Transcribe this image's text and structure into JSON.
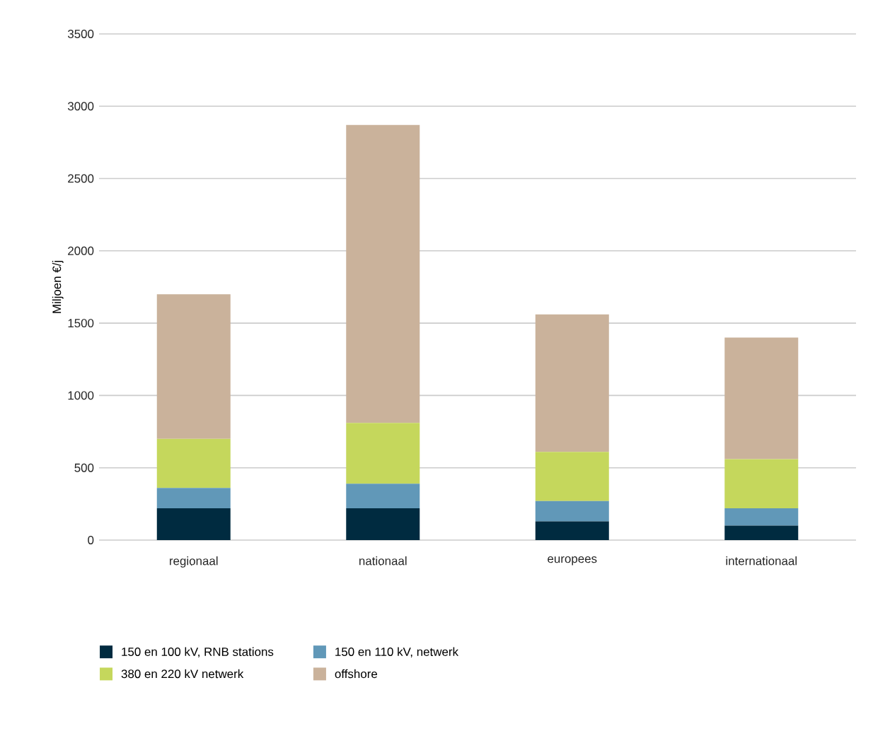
{
  "chart_data": {
    "type": "bar",
    "stacked": true,
    "ylabel": "Miljoen €/j",
    "categories": [
      "regionaal",
      "nationaal",
      "europees",
      "internationaal"
    ],
    "series": [
      {
        "name": "150 en 100 kV, RNB stations",
        "color": "#002b40",
        "values": [
          220,
          220,
          130,
          100
        ]
      },
      {
        "name": "150 en 110 kV, netwerk",
        "color": "#6198b8",
        "values": [
          140,
          170,
          140,
          120
        ]
      },
      {
        "name": "380 en 220 kV netwerk",
        "color": "#c5d75c",
        "values": [
          340,
          420,
          340,
          340
        ]
      },
      {
        "name": "offshore",
        "color": "#cab29b",
        "values": [
          1000,
          2060,
          950,
          840
        ]
      }
    ],
    "ylim": [
      0,
      3500
    ],
    "yticks": [
      0,
      500,
      1000,
      1500,
      2000,
      2500,
      3000,
      3500
    ],
    "grid": "y",
    "legend": "bottom left"
  }
}
